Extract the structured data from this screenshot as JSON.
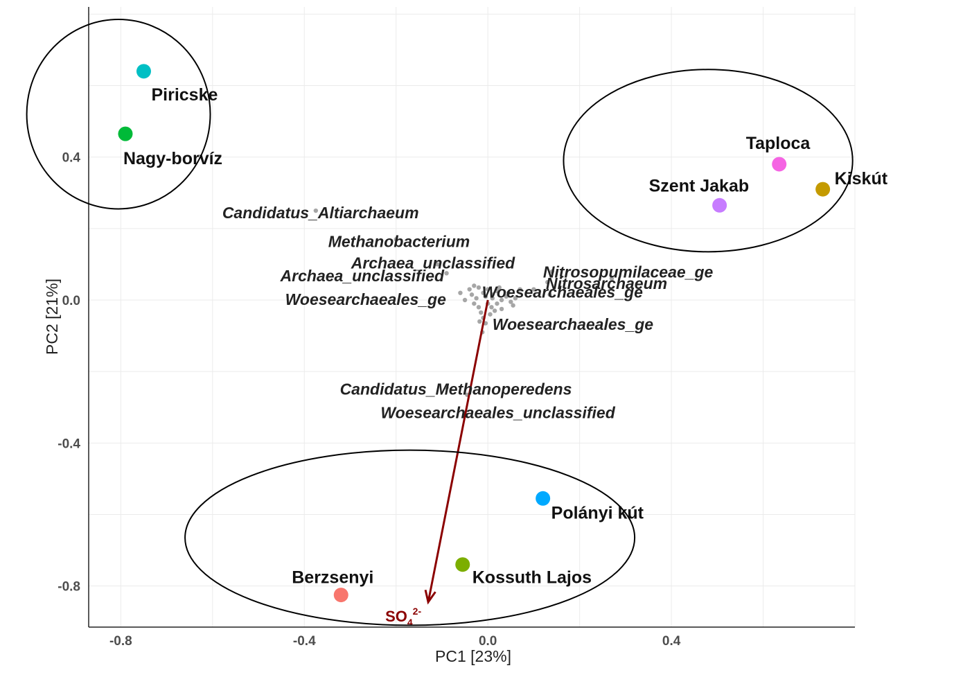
{
  "chart_data": {
    "type": "scatter",
    "subtype": "pca-biplot",
    "title": "",
    "xlabel": "PC1 [23%]",
    "ylabel": "PC2 [21%]",
    "xlim": [
      -0.87,
      0.8
    ],
    "ylim": [
      -0.915,
      0.82
    ],
    "x_ticks": [
      {
        "value": -0.8,
        "label": "-0.8"
      },
      {
        "value": -0.4,
        "label": "-0.4"
      },
      {
        "value": 0.0,
        "label": "0.0"
      },
      {
        "value": 0.4,
        "label": "0.4"
      }
    ],
    "y_ticks": [
      {
        "value": 0.4,
        "label": "0.4"
      },
      {
        "value": 0.0,
        "label": "0.0"
      },
      {
        "value": -0.4,
        "label": "-0.4"
      },
      {
        "value": -0.8,
        "label": "-0.8"
      }
    ],
    "grid": true,
    "samples": [
      {
        "name": "Piricske",
        "x": -0.75,
        "y": 0.64,
        "color": "#00BFC4"
      },
      {
        "name": "Nagy-borvíz",
        "x": -0.79,
        "y": 0.465,
        "color": "#00BA38"
      },
      {
        "name": "Taploca",
        "x": 0.635,
        "y": 0.38,
        "color": "#F564E3"
      },
      {
        "name": "Kiskút",
        "x": 0.73,
        "y": 0.31,
        "color": "#C49A00"
      },
      {
        "name": "Szent Jakab",
        "x": 0.505,
        "y": 0.265,
        "color": "#C77CFF"
      },
      {
        "name": "Polányi kút",
        "x": 0.12,
        "y": -0.555,
        "color": "#00A9FF"
      },
      {
        "name": "Kossuth Lajos",
        "x": -0.055,
        "y": -0.74,
        "color": "#7CAE00"
      },
      {
        "name": "Berzsenyi",
        "x": -0.32,
        "y": -0.825,
        "color": "#F8766D"
      }
    ],
    "taxa_labels": [
      {
        "text": "Candidatus_Altiarchaeum",
        "x": -0.375,
        "y": 0.25
      },
      {
        "text": "Methanobacterium",
        "x": -0.2,
        "y": 0.17
      },
      {
        "text": "Archaea_unclassified",
        "x": -0.12,
        "y": 0.1
      },
      {
        "text": "Archaea_unclassified",
        "x": -0.09,
        "y": 0.07
      },
      {
        "text": "Woesearchaeales_ge",
        "x": -0.025,
        "y": 0.01
      },
      {
        "text": "Nitrosopumilaceae_ge",
        "x": 0.14,
        "y": 0.08
      },
      {
        "text": "Woesearchaeales_ge",
        "x": 0.135,
        "y": 0.015
      },
      {
        "text": "Nitrosarchaeum",
        "x": 0.27,
        "y": 0.06
      },
      {
        "text": "Woesearchaeales_ge",
        "x": 0.01,
        "y": -0.06
      },
      {
        "text": "Candidatus_Methanoperedens",
        "x": -0.09,
        "y": -0.245
      },
      {
        "text": "Woesearchaeales_unclassified",
        "x": -0.045,
        "y": -0.265
      }
    ],
    "taxa_points": [
      [
        -0.375,
        0.25
      ],
      [
        -0.2,
        0.17
      ],
      [
        -0.11,
        0.1
      ],
      [
        -0.09,
        0.075
      ],
      [
        0.14,
        0.08
      ],
      [
        0.27,
        0.06
      ],
      [
        0.135,
        0.015
      ],
      [
        -0.09,
        -0.245
      ],
      [
        -0.045,
        -0.265
      ],
      [
        -0.04,
        0.03
      ],
      [
        -0.03,
        0.04
      ],
      [
        -0.02,
        0.035
      ],
      [
        -0.01,
        0.02
      ],
      [
        0.0,
        0.03
      ],
      [
        0.01,
        0.015
      ],
      [
        0.02,
        0.025
      ],
      [
        0.03,
        0.0
      ],
      [
        0.04,
        0.01
      ],
      [
        0.05,
        -0.005
      ],
      [
        0.06,
        0.005
      ],
      [
        -0.05,
        0.0
      ],
      [
        -0.03,
        -0.01
      ],
      [
        -0.02,
        -0.02
      ],
      [
        -0.015,
        -0.035
      ],
      [
        -0.01,
        -0.05
      ],
      [
        -0.005,
        -0.065
      ],
      [
        -0.012,
        -0.09
      ],
      [
        0.005,
        -0.04
      ],
      [
        0.015,
        -0.03
      ],
      [
        0.02,
        -0.01
      ],
      [
        0.03,
        -0.025
      ],
      [
        0.01,
        0.005
      ],
      [
        -0.005,
        0.01
      ],
      [
        0.045,
        0.02
      ],
      [
        0.07,
        0.03
      ],
      [
        -0.06,
        0.02
      ],
      [
        -0.025,
        0.005
      ],
      [
        0.0,
        -0.01
      ],
      [
        0.008,
        -0.02
      ],
      [
        -0.018,
        -0.06
      ],
      [
        0.025,
        0.035
      ],
      [
        0.1,
        0.03
      ],
      [
        0.13,
        0.05
      ],
      [
        -0.035,
        0.015
      ],
      [
        0.055,
        -0.015
      ]
    ],
    "vectors": [
      {
        "label_main": "SO",
        "label_sub": "4",
        "label_sup": "2-",
        "x0": 0.0,
        "y0": 0.0,
        "x1": -0.13,
        "y1": -0.845,
        "color": "#8b0000"
      }
    ],
    "ellipses": [
      {
        "group": "top-left",
        "cx": -0.805,
        "cy": 0.52,
        "rx": 0.2,
        "ry": 0.265
      },
      {
        "group": "top-right",
        "cx": 0.48,
        "cy": 0.39,
        "rx": 0.315,
        "ry": 0.255
      },
      {
        "group": "bottom",
        "cx": -0.17,
        "cy": -0.665,
        "rx": 0.49,
        "ry": 0.245
      }
    ]
  }
}
